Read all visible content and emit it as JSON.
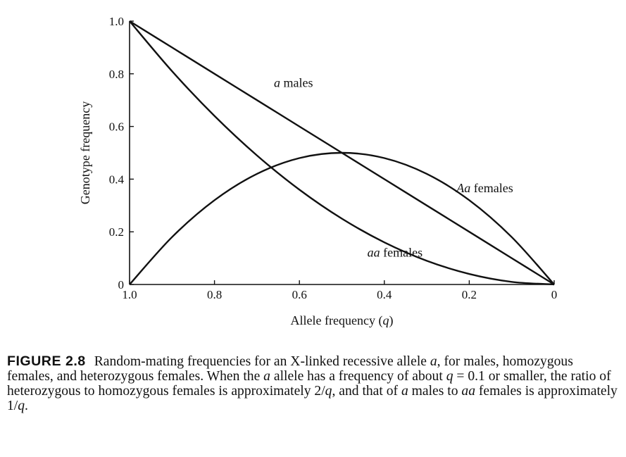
{
  "chart_data": {
    "type": "line",
    "xlabel": "Allele frequency",
    "xlabel_var": "q",
    "ylabel": "Genotype frequency",
    "xlim": [
      1.0,
      0
    ],
    "ylim": [
      0,
      1.0
    ],
    "x_reversed": true,
    "grid": false,
    "x_ticks": [
      {
        "v": 1.0,
        "label": "1.0"
      },
      {
        "v": 0.8,
        "label": "0.8"
      },
      {
        "v": 0.6,
        "label": "0.6"
      },
      {
        "v": 0.4,
        "label": "0.4"
      },
      {
        "v": 0.2,
        "label": "0.2"
      },
      {
        "v": 0,
        "label": "0"
      }
    ],
    "y_ticks": [
      {
        "v": 0,
        "label": "0"
      },
      {
        "v": 0.2,
        "label": "0.2"
      },
      {
        "v": 0.4,
        "label": "0.4"
      },
      {
        "v": 0.6,
        "label": "0.6"
      },
      {
        "v": 0.8,
        "label": "0.8"
      },
      {
        "v": 1.0,
        "label": "1.0"
      }
    ],
    "series": [
      {
        "name": "a males",
        "label_italic": "a",
        "label_rest": " males",
        "label_at": [
          0.66,
          0.75
        ],
        "x": [
          1.0,
          0.9,
          0.8,
          0.7,
          0.6,
          0.5,
          0.4,
          0.3,
          0.2,
          0.1,
          0
        ],
        "y": [
          1.0,
          0.9,
          0.8,
          0.7,
          0.6,
          0.5,
          0.4,
          0.3,
          0.2,
          0.1,
          0
        ]
      },
      {
        "name": "aa females",
        "label_italic": "aa",
        "label_rest": " females",
        "label_at": [
          0.44,
          0.105
        ],
        "x": [
          1.0,
          0.9,
          0.8,
          0.7,
          0.6,
          0.5,
          0.4,
          0.3,
          0.2,
          0.1,
          0
        ],
        "y": [
          1.0,
          0.81,
          0.64,
          0.49,
          0.36,
          0.25,
          0.16,
          0.09,
          0.04,
          0.01,
          0
        ]
      },
      {
        "name": "Aa females",
        "label_italic": "Aa",
        "label_rest": " females",
        "label_at": [
          0.23,
          0.35
        ],
        "x": [
          1.0,
          0.9,
          0.8,
          0.7,
          0.6,
          0.5,
          0.4,
          0.3,
          0.2,
          0.1,
          0
        ],
        "y": [
          0,
          0.18,
          0.32,
          0.42,
          0.48,
          0.5,
          0.48,
          0.42,
          0.32,
          0.18,
          0
        ]
      }
    ]
  },
  "caption": {
    "figure_number": "FIGURE 2.8",
    "parts": [
      {
        "t": "Random-mating frequencies for an X-linked recessive allele "
      },
      {
        "t": "a",
        "i": true
      },
      {
        "t": ", for males, homozygous females, and heterozygous females. When the "
      },
      {
        "t": "a",
        "i": true
      },
      {
        "t": " allele has a frequency of about "
      },
      {
        "t": "q",
        "i": true
      },
      {
        "t": " = 0.1 or smaller, the ratio of heterozygous to homozygous females is approximately 2/"
      },
      {
        "t": "q",
        "i": true
      },
      {
        "t": ", and that of "
      },
      {
        "t": "a",
        "i": true
      },
      {
        "t": " males to "
      },
      {
        "t": "aa",
        "i": true
      },
      {
        "t": " females is approximately 1/"
      },
      {
        "t": "q",
        "i": true
      },
      {
        "t": "."
      }
    ]
  }
}
